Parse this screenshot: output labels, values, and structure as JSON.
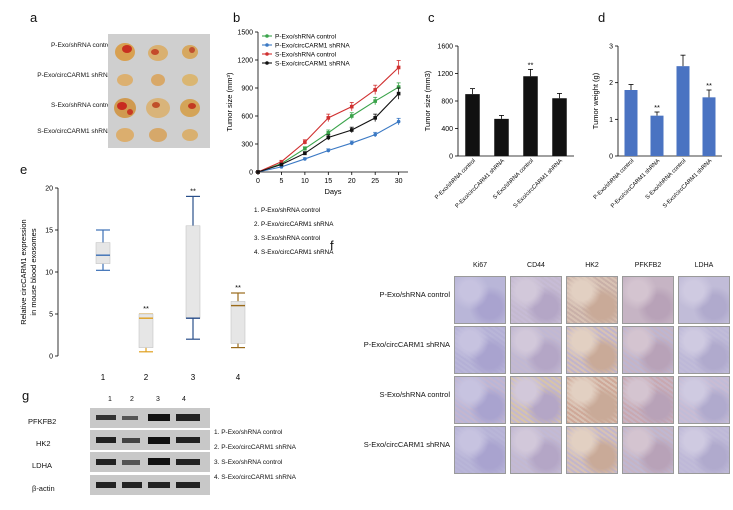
{
  "panels": {
    "a": {
      "letter": "a",
      "rows": [
        "P-Exo/shRNA control",
        "P-Exo/circCARM1 shRNA",
        "S-Exo/shRNA control",
        "S-Exo/circCARM1 shRNA"
      ]
    },
    "b": {
      "letter": "b",
      "chart_data": {
        "type": "line",
        "xlabel": "Days",
        "ylabel": "Tumor size (mm³)",
        "x": [
          0,
          5,
          10,
          15,
          20,
          25,
          30
        ],
        "xlim": [
          0,
          32
        ],
        "ylim": [
          0,
          1500
        ],
        "yticks": [
          0,
          300,
          600,
          900,
          1200,
          1500
        ],
        "series": [
          {
            "name": "P-Exo/shRNA control",
            "color": "#3aa34a",
            "values": [
              0,
              90,
              250,
              420,
              600,
              760,
              910
            ],
            "err": [
              0,
              8,
              20,
              30,
              35,
              40,
              45
            ]
          },
          {
            "name": "P-Exo/circCARM1 shRNA",
            "color": "#3b79c4",
            "values": [
              0,
              55,
              140,
              230,
              310,
              400,
              540
            ],
            "err": [
              0,
              6,
              12,
              18,
              22,
              25,
              35
            ]
          },
          {
            "name": "S-Exo/shRNA control",
            "color": "#d03030",
            "values": [
              0,
              110,
              320,
              580,
              700,
              880,
              1120
            ],
            "err": [
              0,
              10,
              25,
              40,
              45,
              50,
              75
            ]
          },
          {
            "name": "S-Exo/circCARM1 shRNA",
            "color": "#111111",
            "values": [
              0,
              80,
              200,
              370,
              450,
              580,
              840
            ],
            "err": [
              0,
              8,
              18,
              28,
              30,
              40,
              60
            ]
          }
        ]
      }
    },
    "c": {
      "letter": "c",
      "chart_data": {
        "type": "bar",
        "ylabel": "Tumor size (mm3)",
        "categories": [
          "P-Exo/shRNA control",
          "P-Exo/circCARM1 shRNA",
          "S-Exo/shRNA control",
          "S-Exo/circCARM1 shRNA"
        ],
        "values": [
          900,
          540,
          1160,
          840
        ],
        "err": [
          80,
          50,
          100,
          70
        ],
        "ylim": [
          0,
          1600
        ],
        "yticks": [
          0,
          400,
          800,
          1200,
          1600
        ],
        "annotations": [
          "",
          "",
          "**",
          ""
        ],
        "color": "#111111"
      }
    },
    "d": {
      "letter": "d",
      "chart_data": {
        "type": "bar",
        "ylabel": "Tumor weight (g)",
        "categories": [
          "P-Exo/shRNA control",
          "P-Exo/circCARM1 shRNA",
          "S-Exo/shRNA control",
          "S-Exo/circCARM1 shRNA"
        ],
        "values": [
          1.8,
          1.1,
          2.45,
          1.6
        ],
        "err": [
          0.15,
          0.1,
          0.3,
          0.2
        ],
        "ylim": [
          0,
          3
        ],
        "yticks": [
          0,
          1,
          2,
          3
        ],
        "annotations": [
          "",
          "**",
          "",
          "**"
        ],
        "color": "#4a73c2"
      }
    },
    "e": {
      "letter": "e",
      "chart_data": {
        "type": "box",
        "ylabel_line1": "Relative circCARM1 expression",
        "ylabel_line2": "in mouse blood exosomes",
        "categories": [
          "1",
          "2",
          "3",
          "4"
        ],
        "ylim": [
          0,
          20
        ],
        "yticks": [
          0,
          5,
          10,
          15,
          20
        ],
        "boxes": [
          {
            "min": 10.2,
            "q1": 11,
            "median": 12,
            "q3": 13.5,
            "max": 15,
            "color": "#3b6fb5",
            "annotation": ""
          },
          {
            "min": 0.5,
            "q1": 1,
            "median": 4.5,
            "q3": 5,
            "max": 5,
            "color": "#e0a020",
            "annotation": "**"
          },
          {
            "min": 2,
            "q1": 4.5,
            "median": 4.5,
            "q3": 15.5,
            "max": 19,
            "color": "#2a4f8a",
            "annotation": "**"
          },
          {
            "min": 1,
            "q1": 1.5,
            "median": 6,
            "q3": 6.5,
            "max": 7.5,
            "color": "#9a6a1a",
            "annotation": "**"
          }
        ],
        "legend": [
          "1. P-Exo/shRNA  control",
          "2. P-Exo/circCARM1 shRNA",
          "3. S-Exo/shRNA  control",
          "4. S-Exo/circCARM1 shRNA"
        ]
      }
    },
    "f": {
      "letter": "f",
      "columns": [
        "Ki67",
        "CD44",
        "HK2",
        "PFKFB2",
        "LDHA"
      ],
      "rows": [
        "P-Exo/shRNA control",
        "P-Exo/circCARM1 shRNA",
        "S-Exo/shRNA control",
        "S-Exo/circCARM1 shRNA"
      ]
    },
    "g": {
      "letter": "g",
      "lanes": [
        "1",
        "2",
        "3",
        "4"
      ],
      "proteins": [
        "PFKFB2",
        "HK2",
        "LDHA",
        "β-actin"
      ],
      "legend": [
        "1. P-Exo/shRNA  control",
        "2. P-Exo/circCARM1 shRNA",
        "3. S-Exo/shRNA  control",
        "4. S-Exo/circCARM1 shRNA"
      ]
    }
  }
}
